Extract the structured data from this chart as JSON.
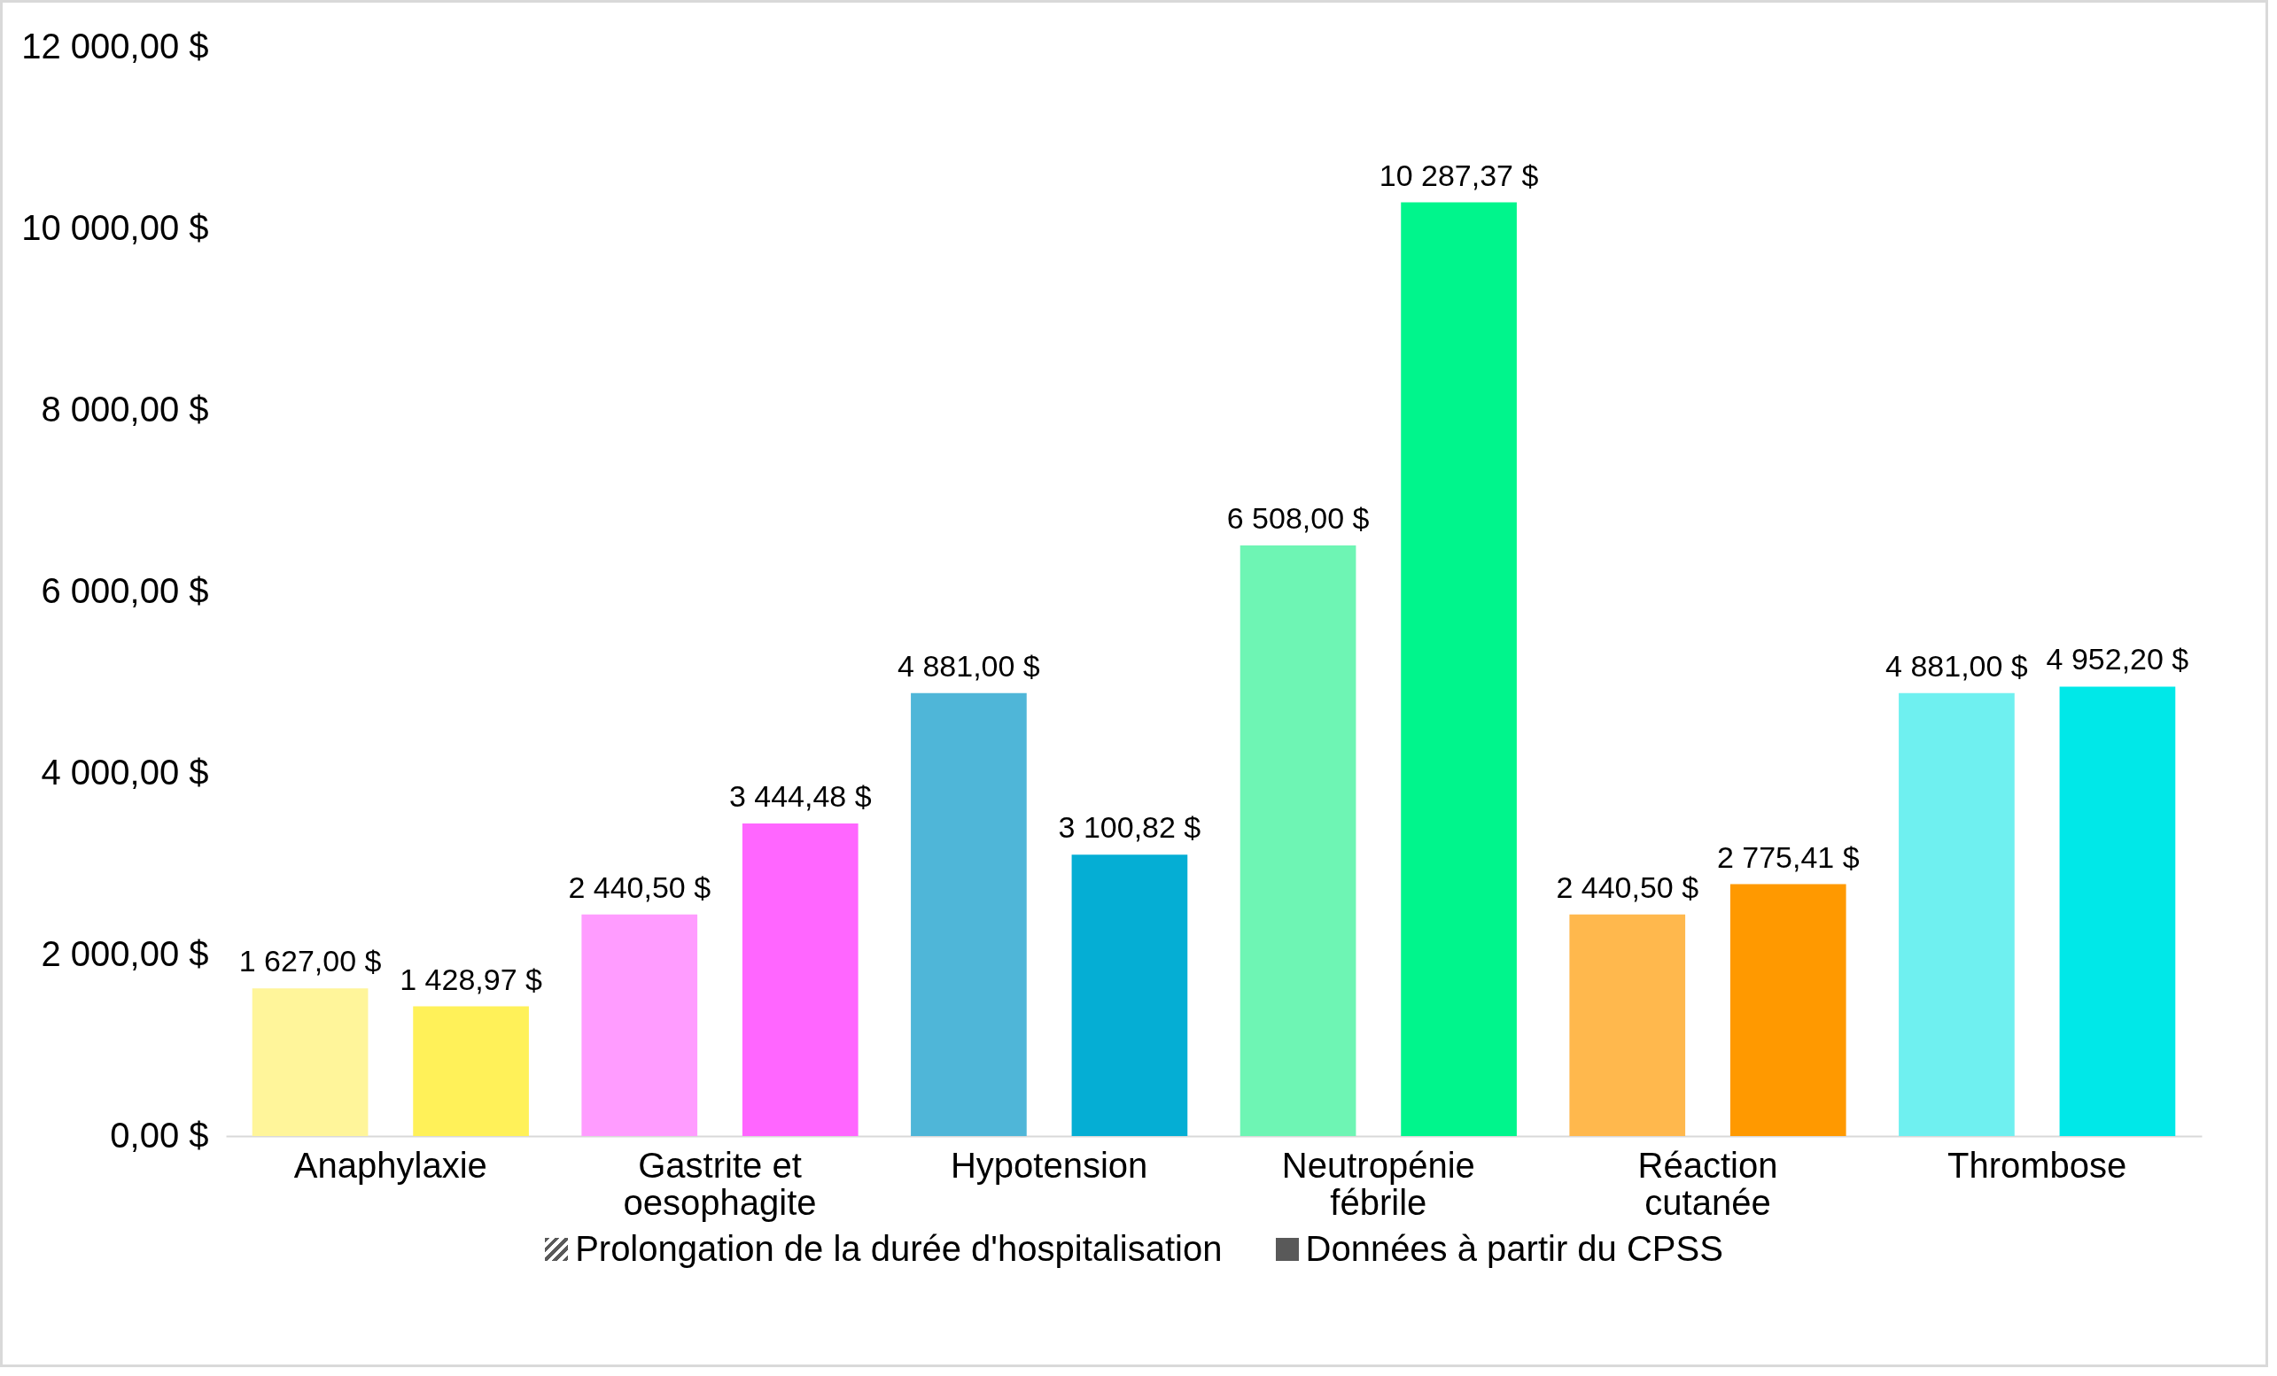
{
  "chart_data": {
    "type": "bar",
    "categories": [
      "Anaphylaxie",
      "Gastrite et oesophagite",
      "Hypotension",
      "Neutropénie fébrile",
      "Réaction cutanée",
      "Thrombose"
    ],
    "series": [
      {
        "name": "Prolongation de la durée d'hospitalisation",
        "colors": [
          "#fff59a",
          "#ff9cff",
          "#4fb6d8",
          "#6ef5b4",
          "#ffb84d",
          "#6ff0f0"
        ],
        "values": [
          1627.0,
          2440.5,
          4881.0,
          6508.0,
          2440.5,
          4881.0
        ],
        "value_labels": [
          "1 627,00 $",
          "2 440,50 $",
          "4 881,00 $",
          "6 508,00 $",
          "2 440,50 $",
          "4 881,00 $"
        ]
      },
      {
        "name": "Données à partir du CPSS",
        "colors": [
          "#fff159",
          "#ff66ff",
          "#05aed4",
          "#00f58c",
          "#ff9900",
          "#00e8e8"
        ],
        "values": [
          1428.97,
          3444.48,
          3100.82,
          10287.37,
          2775.41,
          4952.2
        ],
        "value_labels": [
          "1 428,97 $",
          "3 444,48 $",
          "3 100,82 $",
          "10 287,37 $",
          "2 775,41 $",
          "4 952,20 $"
        ]
      }
    ],
    "ylim": [
      0,
      12000
    ],
    "yticks": [
      {
        "value": 0,
        "label": "0,00 $"
      },
      {
        "value": 2000,
        "label": "2 000,00 $"
      },
      {
        "value": 4000,
        "label": "4 000,00 $"
      },
      {
        "value": 6000,
        "label": "6 000,00 $"
      },
      {
        "value": 8000,
        "label": "8 000,00 $"
      },
      {
        "value": 10000,
        "label": "10 000,00 $"
      },
      {
        "value": 12000,
        "label": "12 000,00 $"
      }
    ],
    "grid": false,
    "legend": "bottom"
  }
}
